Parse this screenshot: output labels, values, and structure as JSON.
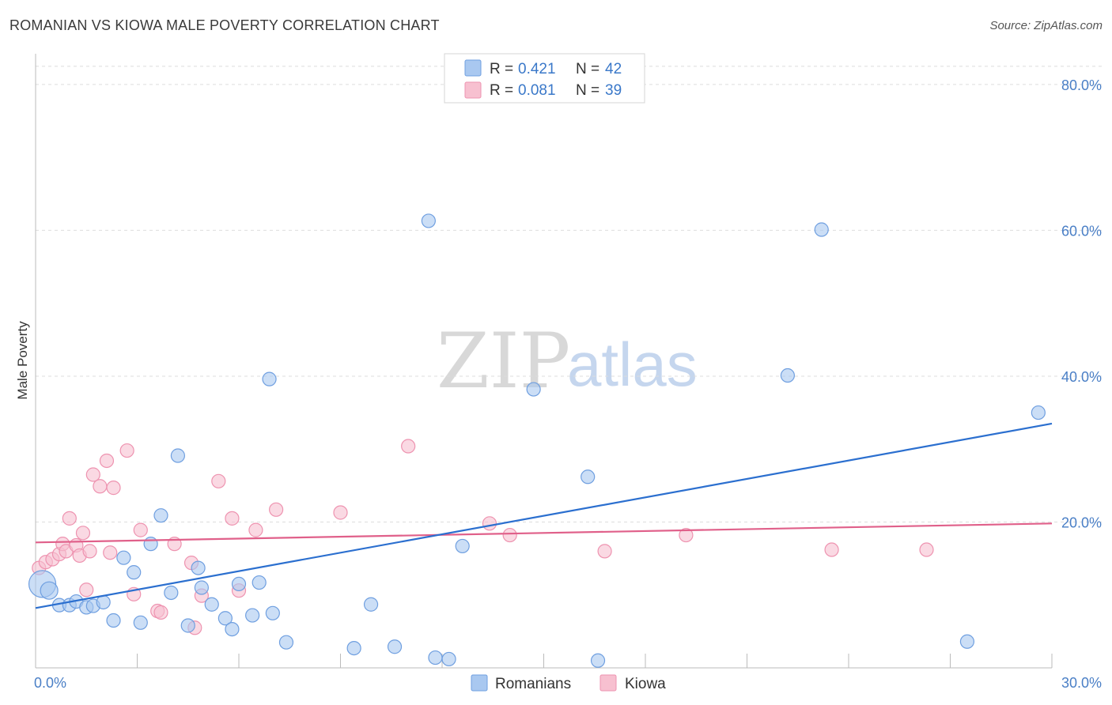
{
  "header": {
    "title": "ROMANIAN VS KIOWA MALE POVERTY CORRELATION CHART",
    "source": "Source: ZipAtlas.com"
  },
  "watermark": {
    "zip": "ZIP",
    "atlas": "atlas"
  },
  "colors": {
    "romanians_fill": "#a9c8f0",
    "romanians_stroke": "#6f9fe0",
    "romanians_line": "#2b6fcf",
    "kiowa_fill": "#f7c0d0",
    "kiowa_stroke": "#ee93b0",
    "kiowa_line": "#e0608a",
    "tick_label": "#4a7fc6",
    "grid": "#dddddd"
  },
  "legend": {
    "rows": [
      {
        "r_label": "R = ",
        "r_value": "0.421",
        "n_label": "N = ",
        "n_value": "42"
      },
      {
        "r_label": "R = ",
        "r_value": "0.081",
        "n_label": "N = ",
        "n_value": "39"
      }
    ]
  },
  "chart_data": {
    "type": "scatter",
    "title": "ROMANIAN VS KIOWA MALE POVERTY CORRELATION CHART",
    "xlabel": "",
    "ylabel": "Male Poverty",
    "xlim": [
      0,
      30
    ],
    "ylim": [
      0,
      84
    ],
    "x_tick_labels": [
      {
        "value": 0,
        "label": "0.0%"
      },
      {
        "value": 30,
        "label": "30.0%"
      }
    ],
    "y_tick_labels": [
      {
        "value": 20,
        "label": "20.0%"
      },
      {
        "value": 40,
        "label": "40.0%"
      },
      {
        "value": 60,
        "label": "60.0%"
      },
      {
        "value": 80,
        "label": "80.0%"
      }
    ],
    "grid": true,
    "legend_position": "top-center",
    "series": [
      {
        "name": "Romanians",
        "r": 0.421,
        "n": 42,
        "trend": {
          "x": [
            0,
            30
          ],
          "y": [
            8.2,
            33.5
          ]
        },
        "points": [
          {
            "x": 0.2,
            "y": 11.5
          },
          {
            "x": 0.4,
            "y": 10.6
          },
          {
            "x": 0.7,
            "y": 8.6
          },
          {
            "x": 1.0,
            "y": 8.6
          },
          {
            "x": 1.2,
            "y": 9.1
          },
          {
            "x": 1.5,
            "y": 8.3
          },
          {
            "x": 1.7,
            "y": 8.5
          },
          {
            "x": 2.0,
            "y": 9.0
          },
          {
            "x": 2.3,
            "y": 6.5
          },
          {
            "x": 2.6,
            "y": 15.1
          },
          {
            "x": 2.9,
            "y": 13.1
          },
          {
            "x": 3.1,
            "y": 6.2
          },
          {
            "x": 3.4,
            "y": 17.0
          },
          {
            "x": 3.7,
            "y": 20.9
          },
          {
            "x": 4.0,
            "y": 10.3
          },
          {
            "x": 4.2,
            "y": 29.1
          },
          {
            "x": 4.5,
            "y": 5.8
          },
          {
            "x": 4.8,
            "y": 13.7
          },
          {
            "x": 4.9,
            "y": 11.0
          },
          {
            "x": 5.2,
            "y": 8.7
          },
          {
            "x": 5.6,
            "y": 6.8
          },
          {
            "x": 5.8,
            "y": 5.3
          },
          {
            "x": 6.0,
            "y": 11.5
          },
          {
            "x": 6.4,
            "y": 7.2
          },
          {
            "x": 6.6,
            "y": 11.7
          },
          {
            "x": 6.9,
            "y": 39.6
          },
          {
            "x": 7.0,
            "y": 7.5
          },
          {
            "x": 7.4,
            "y": 3.5
          },
          {
            "x": 9.4,
            "y": 2.7
          },
          {
            "x": 9.9,
            "y": 8.7
          },
          {
            "x": 10.6,
            "y": 2.9
          },
          {
            "x": 11.6,
            "y": 61.3
          },
          {
            "x": 11.8,
            "y": 1.4
          },
          {
            "x": 12.2,
            "y": 1.2
          },
          {
            "x": 12.6,
            "y": 16.7
          },
          {
            "x": 14.7,
            "y": 38.2
          },
          {
            "x": 16.3,
            "y": 26.2
          },
          {
            "x": 16.6,
            "y": 1.0
          },
          {
            "x": 22.2,
            "y": 40.1
          },
          {
            "x": 23.2,
            "y": 60.1
          },
          {
            "x": 27.5,
            "y": 3.6
          },
          {
            "x": 29.6,
            "y": 35.0
          }
        ]
      },
      {
        "name": "Kiowa",
        "r": 0.081,
        "n": 39,
        "trend": {
          "x": [
            0,
            30
          ],
          "y": [
            17.2,
            19.8
          ]
        },
        "points": [
          {
            "x": 0.1,
            "y": 13.7
          },
          {
            "x": 0.3,
            "y": 14.5
          },
          {
            "x": 0.5,
            "y": 14.9
          },
          {
            "x": 0.7,
            "y": 15.6
          },
          {
            "x": 0.8,
            "y": 17.0
          },
          {
            "x": 0.9,
            "y": 16.0
          },
          {
            "x": 1.0,
            "y": 20.5
          },
          {
            "x": 1.2,
            "y": 16.8
          },
          {
            "x": 1.3,
            "y": 15.4
          },
          {
            "x": 1.4,
            "y": 18.5
          },
          {
            "x": 1.5,
            "y": 10.7
          },
          {
            "x": 1.6,
            "y": 16.0
          },
          {
            "x": 1.7,
            "y": 26.5
          },
          {
            "x": 1.9,
            "y": 24.9
          },
          {
            "x": 2.1,
            "y": 28.4
          },
          {
            "x": 2.2,
            "y": 15.8
          },
          {
            "x": 2.3,
            "y": 24.7
          },
          {
            "x": 2.7,
            "y": 29.8
          },
          {
            "x": 2.9,
            "y": 10.1
          },
          {
            "x": 3.1,
            "y": 18.9
          },
          {
            "x": 3.6,
            "y": 7.8
          },
          {
            "x": 3.7,
            "y": 7.6
          },
          {
            "x": 4.1,
            "y": 17.0
          },
          {
            "x": 4.6,
            "y": 14.4
          },
          {
            "x": 4.7,
            "y": 5.5
          },
          {
            "x": 4.9,
            "y": 9.9
          },
          {
            "x": 5.4,
            "y": 25.6
          },
          {
            "x": 5.8,
            "y": 20.5
          },
          {
            "x": 6.0,
            "y": 10.6
          },
          {
            "x": 6.5,
            "y": 18.9
          },
          {
            "x": 7.1,
            "y": 21.7
          },
          {
            "x": 9.0,
            "y": 21.3
          },
          {
            "x": 11.0,
            "y": 30.4
          },
          {
            "x": 13.4,
            "y": 19.8
          },
          {
            "x": 14.0,
            "y": 18.2
          },
          {
            "x": 16.8,
            "y": 16.0
          },
          {
            "x": 19.2,
            "y": 18.2
          },
          {
            "x": 23.5,
            "y": 16.2
          },
          {
            "x": 26.3,
            "y": 16.2
          }
        ]
      }
    ]
  },
  "bottom_legend": {
    "items": [
      {
        "label": "Romanians"
      },
      {
        "label": "Kiowa"
      }
    ]
  }
}
